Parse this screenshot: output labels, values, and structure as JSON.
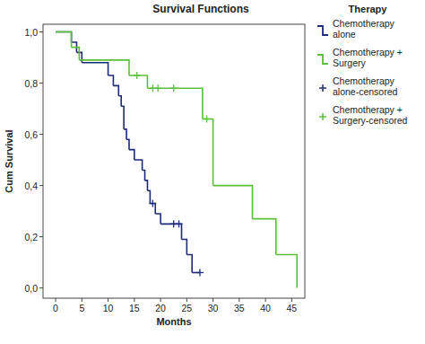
{
  "chart_data": {
    "type": "survival",
    "title": "Survival Functions",
    "x_label": "Months",
    "y_label": "Cum Survival",
    "legend_title": "Therapy",
    "legend": "right",
    "xlim": [
      -2.4,
      47.5
    ],
    "ylim": [
      -0.04,
      1.03
    ],
    "xticks": [
      0,
      5,
      10,
      15,
      20,
      25,
      30,
      35,
      40,
      45
    ],
    "yticks": [
      {
        "value": 0,
        "label": "0,0"
      },
      {
        "value": 0.2,
        "label": "0,2"
      },
      {
        "value": 0.4,
        "label": "0,4"
      },
      {
        "value": 0.6,
        "label": "0,6"
      },
      {
        "value": 0.8,
        "label": "0,8"
      },
      {
        "value": 1,
        "label": "1,0"
      }
    ],
    "series": [
      {
        "name": "Chemotherapy alone",
        "color": "#1f2a78",
        "type": "step",
        "x": [
          0,
          3,
          4,
          5,
          10,
          11,
          12,
          12.5,
          13,
          13.5,
          14,
          15,
          16.5,
          17,
          17.5,
          18,
          19,
          20,
          24,
          25,
          26,
          27.5
        ],
        "values": [
          1.0,
          0.96,
          0.92,
          0.88,
          0.83,
          0.79,
          0.75,
          0.71,
          0.62,
          0.58,
          0.54,
          0.5,
          0.46,
          0.42,
          0.38,
          0.33,
          0.29,
          0.25,
          0.19,
          0.13,
          0.06,
          0.06
        ]
      },
      {
        "name": "Chemotherapy + Surgery",
        "color": "#5cbf3a",
        "type": "step",
        "x": [
          0,
          3,
          4.5,
          14,
          17.5,
          28,
          30,
          37.5,
          42,
          46
        ],
        "values": [
          1.0,
          0.94,
          0.89,
          0.83,
          0.78,
          0.66,
          0.4,
          0.27,
          0.13,
          0.0
        ]
      },
      {
        "name": "Chemotherapy alone-censored",
        "color": "#1f2a78",
        "type": "scatter",
        "marker": "plus",
        "x": [
          18.5,
          22.5,
          23.5,
          27.5
        ],
        "values": [
          0.33,
          0.25,
          0.25,
          0.06
        ]
      },
      {
        "name": "Chemotherapy + Surgery-censored",
        "color": "#5cbf3a",
        "type": "scatter",
        "marker": "plus",
        "x": [
          15.5,
          18.5,
          19.5,
          22.5,
          28.8
        ],
        "values": [
          0.83,
          0.78,
          0.78,
          0.78,
          0.66
        ]
      }
    ]
  }
}
